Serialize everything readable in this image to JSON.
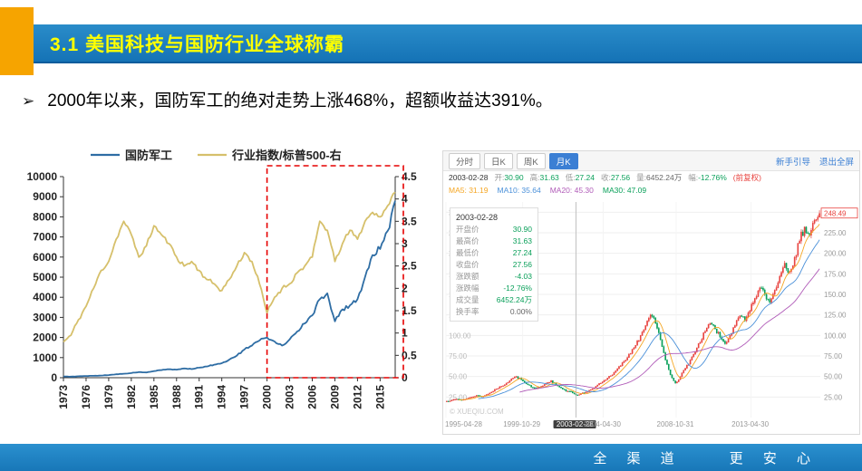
{
  "header": {
    "title": "3.1 美国科技与国防行业全球称霸",
    "accent_color": "#F6A400",
    "bar_color": "#1573B6",
    "title_color": "#FFFF00"
  },
  "bullet": {
    "marker": "➢",
    "text": "2000年以来，国防军工的绝对走势上涨468%，超额收益达391%。"
  },
  "footer": {
    "left": "全 渠 道",
    "right": "更 安 心",
    "bar_color": "#1E85C5"
  },
  "chart_data": [
    {
      "type": "line",
      "title": "",
      "legend_position": "top",
      "x": [
        1973,
        1974,
        1975,
        1976,
        1977,
        1978,
        1979,
        1980,
        1981,
        1982,
        1983,
        1984,
        1985,
        1986,
        1987,
        1988,
        1989,
        1990,
        1991,
        1992,
        1993,
        1994,
        1995,
        1996,
        1997,
        1998,
        1999,
        2000,
        2001,
        2002,
        2003,
        2004,
        2005,
        2006,
        2007,
        2008,
        2009,
        2010,
        2011,
        2012,
        2013,
        2014,
        2015,
        2016,
        2017
      ],
      "x_ticks": [
        1973,
        1976,
        1979,
        1982,
        1985,
        1988,
        1991,
        1994,
        1997,
        2000,
        2003,
        2006,
        2009,
        2012,
        2015
      ],
      "left_axis": {
        "min": 0,
        "max": 10000,
        "step": 1000
      },
      "right_axis": {
        "min": 0,
        "max": 4.5,
        "step": 0.5
      },
      "series": [
        {
          "name": "国防军工",
          "axis": "left",
          "color": "#2E6DA4",
          "values": [
            60,
            55,
            70,
            85,
            95,
            110,
            130,
            170,
            200,
            230,
            280,
            260,
            330,
            380,
            420,
            400,
            460,
            430,
            500,
            560,
            650,
            720,
            900,
            1100,
            1400,
            1600,
            1850,
            2000,
            1800,
            1600,
            1900,
            2300,
            2700,
            3100,
            3900,
            4200,
            2800,
            3400,
            3600,
            3900,
            5000,
            6100,
            6400,
            7300,
            8800
          ]
        },
        {
          "name": "行业指数/标普500-右",
          "axis": "right",
          "color": "#D6C06B",
          "values": [
            0.8,
            0.95,
            1.3,
            1.6,
            2.0,
            2.4,
            2.6,
            3.1,
            3.5,
            3.2,
            2.7,
            2.95,
            3.4,
            3.2,
            3.0,
            2.7,
            2.5,
            2.6,
            2.4,
            2.2,
            2.1,
            1.95,
            2.2,
            2.5,
            2.8,
            2.6,
            2.1,
            1.45,
            1.8,
            2.0,
            2.1,
            2.35,
            2.5,
            2.7,
            3.5,
            3.3,
            2.6,
            3.0,
            3.3,
            3.1,
            3.5,
            3.7,
            3.6,
            3.85,
            4.15
          ]
        }
      ],
      "highlight_box": {
        "x_start": 2000,
        "x_end": 2017,
        "color": "#E60000",
        "style": "dashed"
      }
    },
    {
      "type": "candlestick",
      "ylim": [
        0,
        262.5
      ],
      "up_color": "#E8433F",
      "down_color": "#0AA05A",
      "closes": [
        20,
        21,
        22.5,
        21.5,
        23,
        25,
        27,
        25.5,
        28,
        31,
        35,
        38,
        42,
        47,
        50,
        46,
        41,
        37,
        35,
        38,
        42,
        45,
        40,
        36,
        32,
        31.6,
        27.6,
        29,
        31,
        34,
        38,
        42,
        46,
        51,
        57,
        63,
        70,
        78,
        88,
        100,
        112,
        125,
        115,
        95,
        70,
        52,
        42,
        50,
        60,
        70,
        80,
        92,
        105,
        115,
        108,
        98,
        90,
        100,
        112,
        124,
        118,
        130,
        145,
        158,
        150,
        140,
        155,
        172,
        188,
        178,
        195,
        215,
        232,
        222,
        240,
        248.49
      ],
      "selected_candle": {
        "date": "2003-02-28",
        "open": 30.9,
        "high": 31.63,
        "low": 27.24,
        "close": 27.56,
        "change": -4.03,
        "change_pct": "-12.76%",
        "volume": "6452.24万"
      },
      "last_price": 248.49
    }
  ],
  "stock_app": {
    "toolbar": {
      "tabs": [
        "分时",
        "日K",
        "周K",
        "月K"
      ],
      "active_tab": "月K",
      "links": [
        "新手引导",
        "退出全屏"
      ]
    },
    "info_line": {
      "date": "2003-02-28",
      "items": [
        {
          "label": "开:",
          "value": "30.90",
          "color": "#0AA05A"
        },
        {
          "label": "高:",
          "value": "31.63",
          "color": "#0AA05A"
        },
        {
          "label": "低:",
          "value": "27.24",
          "color": "#0AA05A"
        },
        {
          "label": "收:",
          "value": "27.56",
          "color": "#0AA05A"
        },
        {
          "label": "量:",
          "value": "6452.24万",
          "color": "#666666"
        },
        {
          "label": "幅:",
          "value": "-12.76%",
          "color": "#0AA05A"
        }
      ],
      "adjust_mode": "(前复权)",
      "adjust_color": "#E8433F"
    },
    "ma_line": [
      {
        "label": "MA5:",
        "value": "31.19",
        "color": "#F5A623"
      },
      {
        "label": "MA10:",
        "value": "35.64",
        "color": "#4A90D9"
      },
      {
        "label": "MA20:",
        "value": "45.30",
        "color": "#B05BB8"
      },
      {
        "label": "MA30:",
        "value": "47.09",
        "color": "#0AA05A"
      }
    ],
    "detail_panel": {
      "date": "2003-02-28",
      "rows": [
        {
          "label": "开盘价",
          "value": "30.90",
          "color": "#0AA05A"
        },
        {
          "label": "最高价",
          "value": "31.63",
          "color": "#0AA05A"
        },
        {
          "label": "最低价",
          "value": "27.24",
          "color": "#0AA05A"
        },
        {
          "label": "收盘价",
          "value": "27.56",
          "color": "#0AA05A"
        },
        {
          "label": "涨跌额",
          "value": "-4.03",
          "color": "#0AA05A"
        },
        {
          "label": "涨跌幅",
          "value": "-12.76%",
          "color": "#0AA05A"
        },
        {
          "label": "成交量",
          "value": "6452.24万",
          "color": "#0AA05A"
        },
        {
          "label": "换手率",
          "value": "0.00%",
          "color": "#666666"
        }
      ]
    },
    "price_axis": {
      "ticks": [
        25,
        50,
        75,
        100,
        125,
        150,
        175,
        200,
        225,
        250
      ]
    },
    "date_ticks": [
      {
        "label": "1995-04-28",
        "pos": 0.0,
        "selected": false
      },
      {
        "label": "1999-10-29",
        "pos": 0.205,
        "selected": false
      },
      {
        "label": "2003-02-28",
        "pos": 0.347,
        "selected": true
      },
      {
        "label": "2004-04-30",
        "pos": 0.42,
        "selected": false
      },
      {
        "label": "2008-10-31",
        "pos": 0.615,
        "selected": false
      },
      {
        "label": "2013-04-30",
        "pos": 0.815,
        "selected": false
      }
    ],
    "watermark": "© XUEQIU.COM",
    "price_tag": "248.49"
  }
}
